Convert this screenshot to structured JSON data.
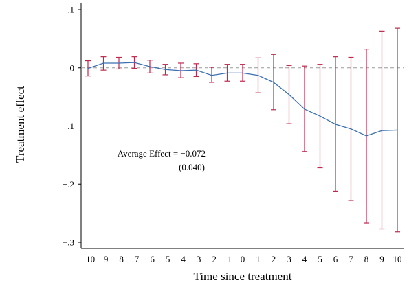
{
  "chart_data": {
    "type": "line",
    "xlabel": "Time since treatment",
    "ylabel": "Treatment effect",
    "x": [
      -10,
      -9,
      -8,
      -7,
      -6,
      -5,
      -4,
      -3,
      -2,
      -1,
      0,
      1,
      2,
      3,
      4,
      5,
      6,
      7,
      8,
      9,
      10
    ],
    "x_tick_labels": [
      "−10",
      "−9",
      "−8",
      "−7",
      "−6",
      "−5",
      "−4",
      "−3",
      "−2",
      "−1",
      "0",
      "1",
      "2",
      "3",
      "4",
      "5",
      "6",
      "7",
      "8",
      "9",
      "10"
    ],
    "y_ticks": [
      0.1,
      0,
      -0.1,
      -0.2,
      -0.3
    ],
    "y_tick_labels": [
      ".1",
      "0",
      "−.1",
      "−.2",
      "−.3"
    ],
    "ylim": [
      -0.3,
      0.1
    ],
    "series": [
      {
        "values": [
          -0.001,
          0.008,
          0.008,
          0.009,
          0.002,
          -0.003,
          -0.005,
          -0.004,
          -0.013,
          -0.009,
          -0.009,
          -0.013,
          -0.025,
          -0.046,
          -0.071,
          -0.083,
          -0.097,
          -0.105,
          -0.117,
          -0.108,
          -0.107
        ],
        "ci_low": [
          -0.014,
          -0.004,
          -0.002,
          -0.001,
          -0.009,
          -0.012,
          -0.017,
          -0.015,
          -0.025,
          -0.023,
          -0.023,
          -0.043,
          -0.072,
          -0.096,
          -0.144,
          -0.172,
          -0.212,
          -0.228,
          -0.267,
          -0.277,
          -0.282
        ],
        "ci_high": [
          0.012,
          0.019,
          0.018,
          0.019,
          0.013,
          0.006,
          0.008,
          0.007,
          0.001,
          0.006,
          0.006,
          0.017,
          0.023,
          0.004,
          0.003,
          0.006,
          0.019,
          0.018,
          0.032,
          0.063,
          0.068
        ],
        "color": "#3a6fb0",
        "ci_color": "#c0284e"
      }
    ],
    "reference_line": {
      "y": 0,
      "style": "dashed",
      "color": "#9a9a9a"
    },
    "annotation": {
      "line1": "Average Effect = −0.072",
      "line2": "(0.040)"
    },
    "grid": false,
    "legend": "none"
  }
}
